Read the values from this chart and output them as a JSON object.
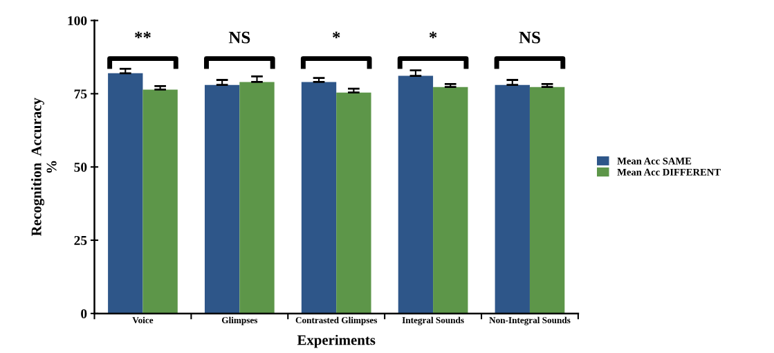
{
  "chart_data": {
    "type": "bar",
    "xlabel": "Experiments",
    "ylabel": "Recognition  Accuracy\n%",
    "categories": [
      "Voice",
      "Glimpses",
      "Contrasted Glimpses",
      "Integral Sounds",
      "Non-Integral Sounds"
    ],
    "series": [
      {
        "name": "Mean Acc SAME",
        "color": "#2e5689",
        "values": [
          82.0,
          78.0,
          79.0,
          81.1,
          78.0
        ],
        "errors": [
          [
            82.0,
            83.5
          ],
          [
            78.0,
            79.7
          ],
          [
            79.0,
            80.4
          ],
          [
            81.1,
            83.0
          ],
          [
            78.0,
            79.7
          ]
        ]
      },
      {
        "name": "Mean Acc DIFFERENT",
        "color": "#5d9649",
        "values": [
          76.4,
          79.0,
          75.4,
          77.3,
          77.3
        ],
        "errors": [
          [
            76.4,
            77.6
          ],
          [
            79.0,
            80.9
          ],
          [
            75.4,
            76.7
          ],
          [
            77.3,
            78.3
          ],
          [
            77.3,
            78.3
          ]
        ]
      }
    ],
    "annotations": [
      "**",
      "NS",
      "*",
      "*",
      "NS"
    ],
    "ylim": [
      0,
      100
    ],
    "yticks": [
      0,
      25,
      50,
      75,
      100
    ],
    "grid": false,
    "legend": "right"
  }
}
